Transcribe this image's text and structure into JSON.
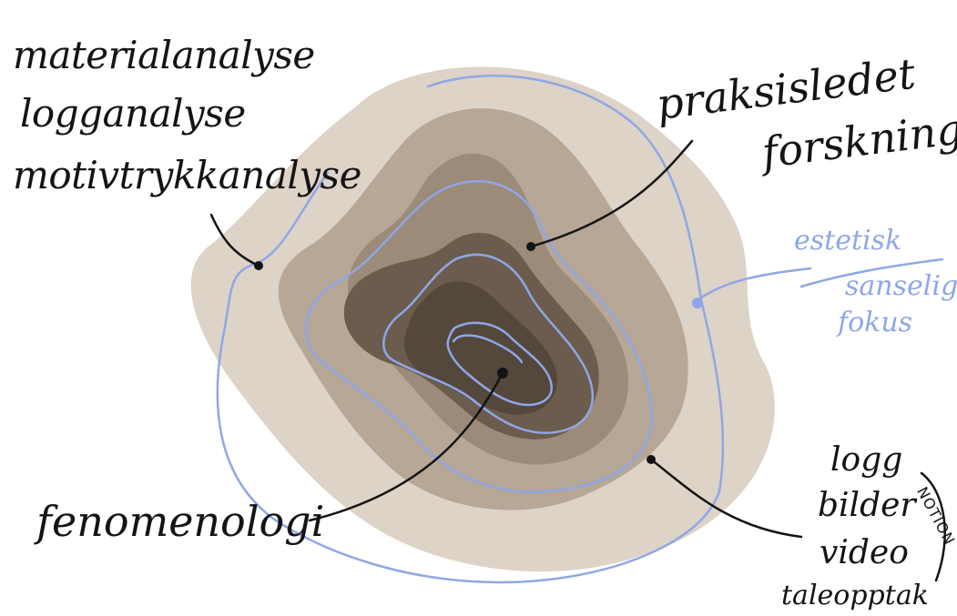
{
  "labels": {
    "methods": [
      "materialanalyse",
      "logganalyse",
      "motivtrykkanalyse"
    ],
    "praxis": [
      "praksisledet",
      "forskning"
    ],
    "focus": [
      "estetisk",
      "sanselig",
      "fokus"
    ],
    "phenomenology": "fenomenologi",
    "data": [
      "logg",
      "bilder",
      "video",
      "taleopptak"
    ],
    "tool": "NOTION"
  },
  "colors": {
    "layer1": "#ddd3c7",
    "layer2": "#b6a797",
    "layer3": "#9c8b79",
    "layer4": "#6c5c4d",
    "layer5": "#54473b",
    "contour": "#8ea7e6",
    "ink": "#141414"
  }
}
